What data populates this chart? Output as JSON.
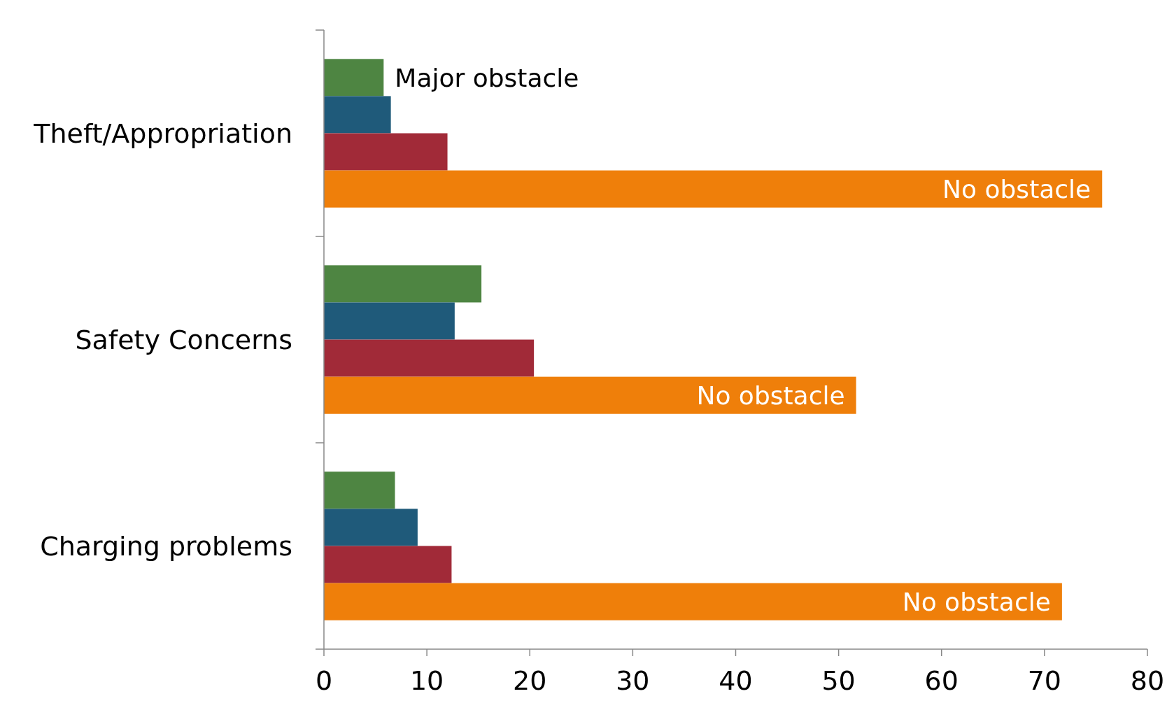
{
  "chart_data": {
    "type": "bar",
    "orientation": "horizontal",
    "categories": [
      "Theft/Appropriation",
      "Safety Concerns",
      "Charging problems"
    ],
    "series": [
      {
        "name": "Major obstacle",
        "color": "#4e8542",
        "values": [
          5.8,
          15.3,
          6.9
        ]
      },
      {
        "color": "#1f5a7a",
        "values": [
          6.5,
          12.7,
          9.1
        ]
      },
      {
        "color": "#a12a38",
        "values": [
          12.0,
          20.4,
          12.4
        ]
      },
      {
        "name": "No obstacle",
        "color": "#ef7f0a",
        "values": [
          75.6,
          51.7,
          71.7
        ]
      }
    ],
    "xlim": [
      0,
      80
    ],
    "xticks": [
      0,
      10,
      20,
      30,
      40,
      50,
      60,
      70,
      80
    ],
    "grid": false,
    "legend": false
  }
}
